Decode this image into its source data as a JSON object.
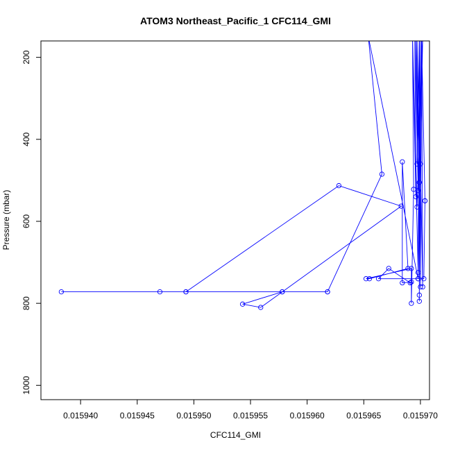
{
  "chart_data": {
    "type": "line",
    "title": "ATOM3 Northeast_Pacific_1 CFC114_GMI",
    "xlabel": "CFC114_GMI",
    "ylabel": "Pressure (mbar)",
    "xlim": [
      0.0159365,
      0.0159708
    ],
    "ylim": [
      1035,
      160
    ],
    "y_inverted": true,
    "x_ticks": [
      0.01594,
      0.015945,
      0.01595,
      0.015955,
      0.01596,
      0.015965,
      0.01597
    ],
    "x_tick_labels": [
      "0.015940",
      "0.015945",
      "0.015950",
      "0.015955",
      "0.015960",
      "0.015965",
      "0.015970"
    ],
    "y_ticks": [
      200,
      400,
      600,
      800,
      1000
    ],
    "y_tick_labels": [
      "200",
      "400",
      "600",
      "800",
      "1000"
    ],
    "grid": false,
    "series": [
      {
        "color": "#0000ff",
        "marker": "open-circle",
        "line": true,
        "points": [
          {
            "x": 0.0159699,
            "y": 150,
            "marker": false
          },
          {
            "x": 0.0159697,
            "y": 460
          },
          {
            "x": 0.0159697,
            "y": 150,
            "marker": false
          },
          {
            "x": 0.0159699,
            "y": 505
          },
          {
            "x": 0.0159696,
            "y": 150,
            "marker": false
          },
          {
            "x": 0.0159698,
            "y": 525
          },
          {
            "x": 0.0159695,
            "y": 150,
            "marker": false
          },
          {
            "x": 0.0159696,
            "y": 540
          },
          {
            "x": 0.0159693,
            "y": 150,
            "marker": false
          },
          {
            "x": 0.0159697,
            "y": 565
          },
          {
            "x": 0.0159702,
            "y": 150,
            "marker": false
          },
          {
            "x": 0.01597,
            "y": 460
          },
          {
            "x": 0.0159702,
            "y": 760
          },
          {
            "x": 0.0159701,
            "y": 150,
            "marker": false
          },
          {
            "x": 0.0159704,
            "y": 550
          },
          {
            "x": 0.0159704,
            "y": 550
          },
          {
            "x": 0.0159703,
            "y": 740
          },
          {
            "x": 0.0159698,
            "y": 740
          },
          {
            "x": 0.0159701,
            "y": 150,
            "marker": false
          },
          {
            "x": 0.01597,
            "y": 760
          },
          {
            "x": 0.0159699,
            "y": 150,
            "marker": false
          },
          {
            "x": 0.0159699,
            "y": 780
          },
          {
            "x": 0.01597,
            "y": 150,
            "marker": false
          },
          {
            "x": 0.0159699,
            "y": 795
          },
          {
            "x": 0.0159699,
            "y": 150,
            "marker": false
          },
          {
            "x": 0.0159698,
            "y": 725
          },
          {
            "x": 0.0159693,
            "y": 150,
            "marker": false
          },
          {
            "x": 0.0159694,
            "y": 522
          },
          {
            "x": 0.0159692,
            "y": 800
          },
          {
            "x": 0.0159692,
            "y": 715
          },
          {
            "x": 0.0159652,
            "y": 740
          },
          {
            "x": 0.0159655,
            "y": 740
          },
          {
            "x": 0.0159689,
            "y": 715
          },
          {
            "x": 0.0159684,
            "y": 455
          },
          {
            "x": 0.0159684,
            "y": 750
          },
          {
            "x": 0.0159692,
            "y": 748
          },
          {
            "x": 0.0159691,
            "y": 750
          },
          {
            "x": 0.0159672,
            "y": 715
          },
          {
            "x": 0.0159663,
            "y": 740
          },
          {
            "x": 0.0159698,
            "y": 740
          },
          {
            "x": 0.0159654,
            "y": 150,
            "marker": false
          },
          {
            "x": 0.0159666,
            "y": 485
          },
          {
            "x": 0.0159618,
            "y": 772
          },
          {
            "x": 0.0159383,
            "y": 772
          },
          {
            "x": 0.015947,
            "y": 772
          },
          {
            "x": 0.0159493,
            "y": 772
          },
          {
            "x": 0.0159578,
            "y": 772
          },
          {
            "x": 0.0159618,
            "y": 772
          },
          {
            "x": 0.0159578,
            "y": 772
          },
          {
            "x": 0.0159543,
            "y": 802
          },
          {
            "x": 0.0159559,
            "y": 810
          },
          {
            "x": 0.0159683,
            "y": 563
          },
          {
            "x": 0.0159628,
            "y": 513
          },
          {
            "x": 0.0159493,
            "y": 772
          }
        ]
      }
    ]
  }
}
